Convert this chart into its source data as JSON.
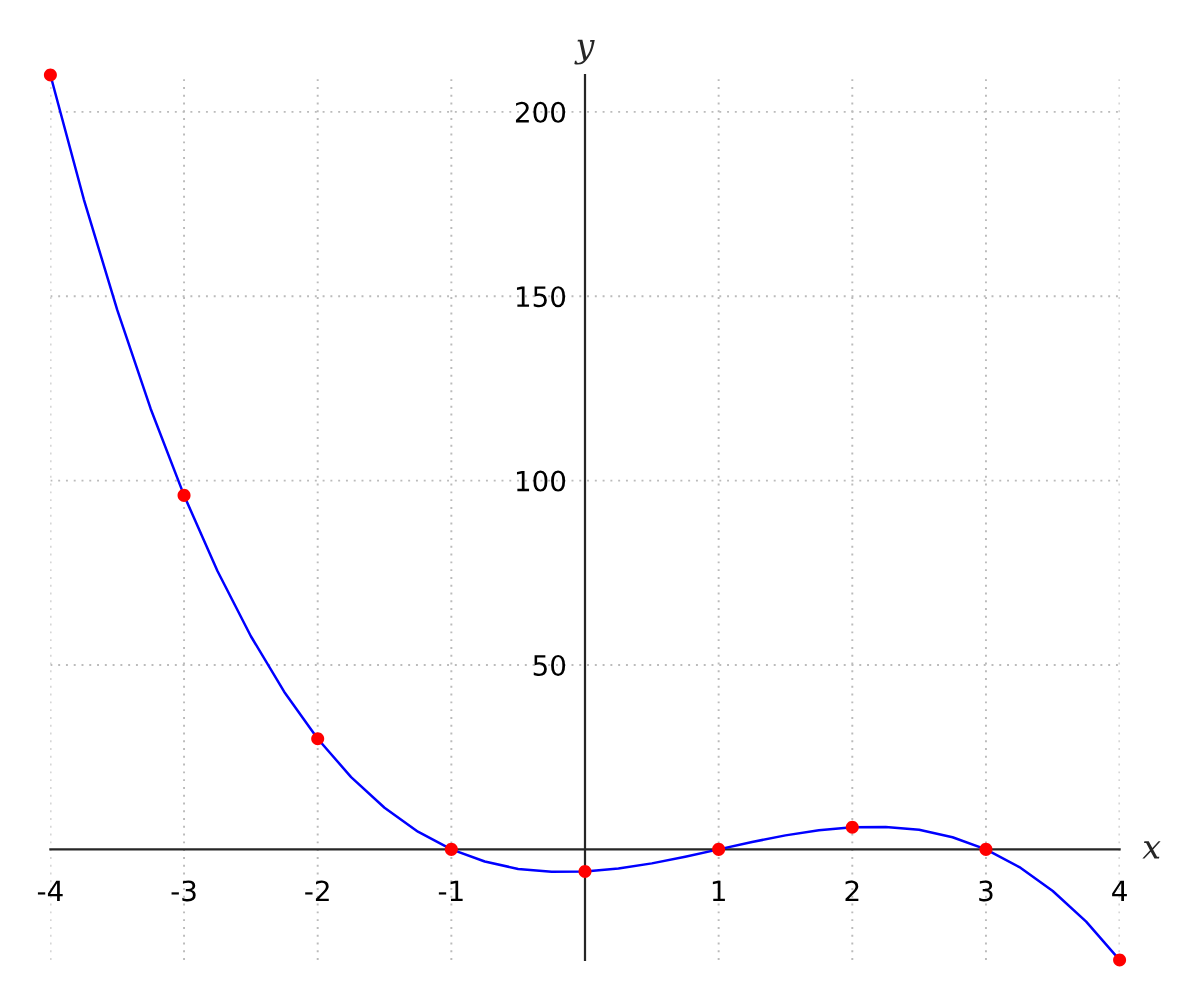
{
  "chart_data": {
    "type": "line",
    "xlabel": "x",
    "ylabel": "y",
    "xlim": [
      -4,
      4
    ],
    "ylim": [
      -30,
      210
    ],
    "xticks": [
      -4,
      -3,
      -2,
      -1,
      1,
      2,
      3,
      4
    ],
    "yticks": [
      50,
      100,
      150,
      200
    ],
    "grid": true,
    "line_style": "solid",
    "series": [
      {
        "color": "#0000ff",
        "marker": "none",
        "x": [
          -4,
          -3.75,
          -3.5,
          -3.25,
          -3,
          -2.75,
          -2.5,
          -2.25,
          -2,
          -1.75,
          -1.5,
          -1.25,
          -1,
          -0.75,
          -0.5,
          -0.25,
          0,
          0.25,
          0.5,
          0.75,
          1,
          1.25,
          1.5,
          1.75,
          2,
          2.25,
          2.5,
          2.75,
          3,
          3.25,
          3.5,
          3.75,
          4
        ],
        "values": [
          210,
          176.3,
          146.3,
          119.5,
          96,
          75.5,
          57.8,
          42.7,
          30,
          19.6,
          11.3,
          4.8,
          0,
          -3.3,
          -5.3,
          -6.1,
          -6,
          -5.2,
          -3.8,
          -2,
          0,
          2,
          3.8,
          5.2,
          6,
          6.1,
          5.3,
          3.3,
          0,
          -4.8,
          -11.3,
          -19.6,
          -30
        ]
      },
      {
        "type": "scatter",
        "color": "#ff0000",
        "marker": "circle",
        "x": [
          -4,
          -3,
          -2,
          -1,
          0,
          1,
          2,
          3,
          4
        ],
        "values": [
          210,
          96,
          30,
          0,
          -6,
          0,
          6,
          0,
          -30
        ]
      }
    ]
  }
}
